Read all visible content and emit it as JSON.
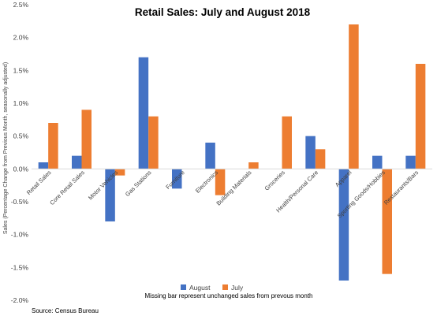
{
  "chart_data": {
    "type": "bar",
    "title": "Retail Sales: July and August 2018",
    "ylabel": "Sales (Percentage Change from Previous Month, seasonally adjusted)",
    "xlabel": "",
    "categories": [
      "Retail Sales",
      "Core Retail Sales",
      "Motor Vehicles",
      "Gas Stations",
      "Furniture",
      "Electronics",
      "Building Materials",
      "Groceries",
      "Health/Personal Care",
      "Apparel",
      "Sporting Goods/Hobbies",
      "Restaurants/Bars"
    ],
    "series": [
      {
        "name": "August",
        "color": "#4472c4",
        "values": [
          0.1,
          0.2,
          -0.8,
          1.7,
          -0.3,
          0.4,
          0.0,
          0.0,
          0.5,
          -1.7,
          0.2,
          0.2
        ]
      },
      {
        "name": "July",
        "color": "#ed7d31",
        "values": [
          0.7,
          0.9,
          -0.1,
          0.8,
          0.0,
          -0.4,
          0.1,
          0.8,
          0.3,
          2.2,
          -1.6,
          1.6
        ]
      }
    ],
    "ylim": [
      -2.0,
      2.5
    ],
    "yticks": [
      -2.0,
      -1.5,
      -1.0,
      -0.5,
      0.0,
      0.5,
      1.0,
      1.5,
      2.0,
      2.5
    ],
    "ytick_labels": [
      "-2.0%",
      "-1.5%",
      "-1.0%",
      "-0.5%",
      "0.0%",
      "0.5%",
      "1.0%",
      "1.5%",
      "2.0%",
      "2.5%"
    ],
    "grid": false,
    "legend_position": "bottom"
  },
  "note": "Missing bar represent unchanged sales from prevous month",
  "source": "Source: Census Bureau"
}
